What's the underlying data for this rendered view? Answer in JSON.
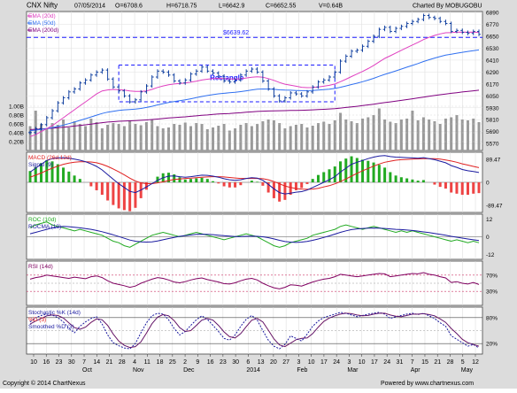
{
  "header": {
    "symbol": "CNX Nifty",
    "date": "07/05/2014",
    "open": "O=6708.6",
    "high": "H=6718.75",
    "low": "L=6642.9",
    "close": "C=6652.55",
    "volume": "V=0.64B",
    "charted_by": "Charted By MOBUGOBU"
  },
  "footer": {
    "copyright": "Copyright © 2014 ChartNexus",
    "powered": "Powered by www.chartnexus.com"
  },
  "colors": {
    "price_up": "#003399",
    "ema20": "#e040c0",
    "ema50": "#3070f0",
    "ema200": "#800080",
    "volume": "#9a9a9a",
    "macd": "#1a1aa0",
    "signal": "#e02020",
    "hist_pos": "#22aa22",
    "hist_neg": "#ee4444",
    "roc": "#22aa22",
    "rocma": "#1a1aa0",
    "rsi": "#800060",
    "stoch_k": "#1a1aa0",
    "stoch_d": "#e02020",
    "rectangle": "#1a1aff"
  },
  "chart_data": [
    {
      "type": "ohlc",
      "title": "CNX Nifty",
      "legend": [
        "EMA (20d)",
        "EMA (50d)",
        "EMA (200d)"
      ],
      "annotations": [
        "Rectangle",
        "$6639.62"
      ],
      "y_ticks": [
        "6890",
        "6770",
        "6650",
        "6530",
        "6410",
        "6290",
        "6170",
        "6050",
        "5930",
        "5810",
        "5690",
        "5570"
      ],
      "ylim": [
        5500,
        6900
      ],
      "volume_ticks": [
        "1.00B",
        "0.80B",
        "0.60B",
        "0.40B",
        "0.20B"
      ],
      "rectangle_bounds": [
        5990,
        6360
      ],
      "resistance": 6639.62,
      "x_ticks": [
        "10",
        "16",
        "23",
        "30",
        "7",
        "14",
        "21",
        "28",
        "4",
        "11",
        "18",
        "25",
        "2",
        "9",
        "16",
        "23",
        "30",
        "6",
        "13",
        "20",
        "27",
        "3",
        "10",
        "17",
        "24",
        "3",
        "10",
        "17",
        "24",
        "31",
        "7",
        "15",
        "21",
        "28",
        "5",
        "12"
      ],
      "month_labels": [
        "Oct",
        "Nov",
        "Dec",
        "2014",
        "Feb",
        "Mar",
        "Apr",
        "May"
      ],
      "close": [
        5680,
        5720,
        5760,
        5830,
        5900,
        5980,
        6030,
        6090,
        6120,
        6180,
        6210,
        6260,
        6290,
        6310,
        6220,
        6140,
        6100,
        6050,
        5990,
        6010,
        6090,
        6150,
        6240,
        6300,
        6290,
        6260,
        6200,
        6180,
        6210,
        6270,
        6300,
        6340,
        6300,
        6280,
        6250,
        6200,
        6190,
        6210,
        6260,
        6300,
        6320,
        6290,
        6200,
        6120,
        6050,
        6000,
        6030,
        6080,
        6070,
        6050,
        6090,
        6140,
        6190,
        6210,
        6240,
        6290,
        6400,
        6450,
        6500,
        6510,
        6550,
        6600,
        6650,
        6720,
        6740,
        6700,
        6730,
        6750,
        6780,
        6800,
        6820,
        6860,
        6840,
        6830,
        6800,
        6780,
        6700,
        6710,
        6690,
        6680,
        6700,
        6670
      ],
      "ema20": [
        5640,
        5660,
        5690,
        5720,
        5750,
        5790,
        5830,
        5870,
        5910,
        5950,
        5990,
        6030,
        6070,
        6100,
        6110,
        6115,
        6112,
        6108,
        6100,
        6095,
        6095,
        6100,
        6115,
        6135,
        6150,
        6162,
        6170,
        6175,
        6180,
        6188,
        6198,
        6210,
        6218,
        6224,
        6226,
        6224,
        6221,
        6220,
        6222,
        6230,
        6238,
        6242,
        6238,
        6224,
        6206,
        6185,
        6168,
        6157,
        6147,
        6137,
        6133,
        6134,
        6140,
        6147,
        6156,
        6170,
        6193,
        6218,
        6245,
        6270,
        6296,
        6325,
        6357,
        6393,
        6427,
        6454,
        6482,
        6509,
        6536,
        6563,
        6589,
        6617,
        6640,
        6659,
        6674,
        6686,
        6688,
        6691,
        6692,
        6691,
        6692,
        6690
      ],
      "ema50": [
        5700,
        5705,
        5712,
        5720,
        5730,
        5742,
        5755,
        5770,
        5786,
        5803,
        5820,
        5838,
        5856,
        5873,
        5886,
        5895,
        5903,
        5909,
        5913,
        5917,
        5924,
        5933,
        5945,
        5959,
        5972,
        5984,
        5993,
        6001,
        6010,
        6021,
        6032,
        6044,
        6054,
        6063,
        6071,
        6076,
        6081,
        6086,
        6093,
        6101,
        6110,
        6117,
        6120,
        6119,
        6116,
        6111,
        6108,
        6107,
        6105,
        6103,
        6103,
        6105,
        6109,
        6113,
        6118,
        6125,
        6137,
        6150,
        6164,
        6178,
        6193,
        6209,
        6227,
        6247,
        6267,
        6284,
        6302,
        6320,
        6339,
        6357,
        6376,
        6396,
        6414,
        6431,
        6446,
        6460,
        6470,
        6480,
        6489,
        6498,
        6506,
        6513
      ],
      "ema200": [
        5710,
        5713,
        5716,
        5720,
        5724,
        5729,
        5734,
        5740,
        5746,
        5752,
        5759,
        5766,
        5773,
        5780,
        5786,
        5790,
        5794,
        5797,
        5799,
        5801,
        5804,
        5808,
        5812,
        5817,
        5822,
        5827,
        5831,
        5835,
        5839,
        5844,
        5849,
        5854,
        5858,
        5863,
        5867,
        5870,
        5873,
        5877,
        5880,
        5885,
        5889,
        5893,
        5896,
        5898,
        5899,
        5900,
        5901,
        5903,
        5904,
        5905,
        5907,
        5909,
        5912,
        5915,
        5918,
        5922,
        5927,
        5933,
        5939,
        5945,
        5952,
        5959,
        5966,
        5974,
        5982,
        5990,
        5997,
        6005,
        6013,
        6021,
        6030,
        6038,
        6046,
        6054,
        6062,
        6069,
        6076,
        6082,
        6089,
        6095,
        6101,
        6107
      ],
      "volume": [
        0.55,
        0.9,
        0.6,
        0.5,
        0.62,
        0.58,
        0.7,
        0.52,
        0.66,
        0.6,
        0.55,
        0.72,
        0.64,
        0.5,
        0.58,
        0.62,
        0.6,
        0.55,
        0.68,
        0.6,
        0.57,
        0.64,
        0.7,
        0.55,
        0.5,
        0.52,
        0.6,
        0.58,
        0.63,
        0.55,
        0.62,
        0.6,
        0.48,
        0.52,
        0.56,
        0.6,
        0.45,
        0.5,
        0.58,
        0.62,
        0.55,
        0.6,
        0.66,
        0.7,
        0.68,
        0.62,
        0.5,
        0.55,
        0.58,
        0.6,
        0.52,
        0.56,
        0.62,
        0.65,
        0.6,
        0.68,
        0.85,
        0.7,
        0.66,
        0.62,
        0.72,
        0.75,
        0.8,
        0.95,
        0.7,
        0.65,
        0.62,
        0.7,
        0.72,
        0.9,
        0.68,
        0.75,
        0.7,
        0.66,
        0.6,
        0.72,
        0.75,
        0.8,
        0.7,
        0.68,
        0.72,
        0.64
      ]
    },
    {
      "type": "line",
      "title": "MACD (26d,12d)",
      "legend": [
        "MACD (26d,12d)",
        "Signal (9)"
      ],
      "y_ticks": [
        "89.47",
        "0",
        "-89.47"
      ],
      "ylim": [
        -110,
        110
      ],
      "macd": [
        40,
        55,
        70,
        85,
        92,
        95,
        96,
        94,
        90,
        86,
        80,
        72,
        62,
        48,
        30,
        12,
        -5,
        -20,
        -35,
        -40,
        -30,
        -18,
        -5,
        8,
        18,
        24,
        25,
        22,
        20,
        22,
        25,
        28,
        27,
        24,
        20,
        14,
        10,
        8,
        10,
        15,
        18,
        16,
        8,
        -8,
        -25,
        -40,
        -45,
        -42,
        -38,
        -36,
        -30,
        -20,
        -10,
        0,
        10,
        22,
        40,
        55,
        70,
        78,
        85,
        92,
        98,
        102,
        104,
        100,
        98,
        97,
        96,
        95,
        94,
        96,
        92,
        88,
        82,
        76,
        65,
        58,
        50,
        45,
        42,
        38
      ],
      "signal": [
        20,
        28,
        36,
        46,
        55,
        63,
        70,
        75,
        78,
        80,
        80,
        79,
        76,
        70,
        62,
        52,
        41,
        29,
        16,
        5,
        -2,
        -5,
        -5,
        -2,
        2,
        7,
        11,
        13,
        15,
        16,
        18,
        20,
        21,
        22,
        22,
        21,
        19,
        17,
        15,
        15,
        15,
        15,
        14,
        10,
        3,
        -6,
        -14,
        -20,
        -24,
        -26,
        -27,
        -26,
        -23,
        -18,
        -13,
        -6,
        3,
        13,
        24,
        35,
        45,
        54,
        63,
        71,
        78,
        82,
        86,
        88,
        89,
        90,
        91,
        92,
        92,
        92,
        90,
        87,
        83,
        78,
        72,
        67,
        62,
        57
      ]
    },
    {
      "type": "line",
      "title": "ROC (10d)",
      "legend": [
        "ROC (10d)",
        "ROCMA (10)"
      ],
      "y_ticks": [
        "12",
        "0",
        "-12"
      ],
      "ylim": [
        -14,
        14
      ],
      "roc": [
        6,
        8,
        9,
        10,
        8,
        7,
        6,
        5,
        4,
        5,
        4,
        3,
        2,
        1,
        -1,
        -3,
        -4,
        -6,
        -7,
        -5,
        -3,
        -1,
        1,
        2,
        3,
        2,
        1,
        0,
        1,
        2,
        3,
        2,
        1,
        0,
        -1,
        -2,
        -1,
        0,
        1,
        2,
        1,
        0,
        -2,
        -4,
        -6,
        -7,
        -6,
        -4,
        -3,
        -2,
        -1,
        1,
        2,
        3,
        4,
        5,
        7,
        8,
        7,
        6,
        5,
        6,
        7,
        6,
        5,
        4,
        3,
        4,
        3,
        4,
        3,
        2,
        1,
        0,
        -1,
        -2,
        -3,
        -2,
        -3,
        -4,
        -3,
        -4
      ],
      "rocma": [
        2,
        3,
        4,
        5,
        6,
        6.5,
        7,
        6.8,
        6.4,
        6,
        5.5,
        5,
        4.2,
        3.4,
        2.4,
        1.3,
        0.2,
        -1,
        -2.2,
        -3,
        -3.4,
        -3.6,
        -3.4,
        -2.8,
        -2,
        -1.2,
        -0.4,
        0.3,
        0.8,
        1.2,
        1.6,
        1.7,
        1.6,
        1.4,
        1.1,
        0.7,
        0.4,
        0.2,
        0.2,
        0.3,
        0.4,
        0.3,
        0,
        -0.6,
        -1.4,
        -2.4,
        -3.2,
        -3.6,
        -3.8,
        -3.6,
        -3.1,
        -2.4,
        -1.5,
        -0.5,
        0.6,
        1.8,
        3,
        4,
        4.8,
        5.3,
        5.6,
        5.8,
        5.9,
        5.8,
        5.6,
        5.3,
        5,
        4.8,
        4.5,
        4.2,
        3.8,
        3.3,
        2.8,
        2.2,
        1.6,
        1,
        0.3,
        -0.3,
        -0.9,
        -1.5,
        -2,
        -2.5
      ]
    },
    {
      "type": "line",
      "title": "RSI (14d)",
      "y_ticks": [
        "70%",
        "30%"
      ],
      "ylim": [
        0,
        100
      ],
      "rsi": [
        60,
        64,
        66,
        70,
        68,
        66,
        64,
        62,
        65,
        63,
        61,
        66,
        68,
        64,
        56,
        50,
        47,
        44,
        40,
        43,
        50,
        55,
        60,
        64,
        62,
        58,
        53,
        51,
        54,
        58,
        61,
        63,
        59,
        56,
        53,
        49,
        48,
        51,
        56,
        60,
        62,
        58,
        50,
        44,
        39,
        36,
        40,
        46,
        45,
        43,
        48,
        53,
        57,
        60,
        62,
        66,
        72,
        70,
        68,
        66,
        68,
        70,
        72,
        74,
        73,
        66,
        68,
        70,
        72,
        74,
        73,
        76,
        72,
        70,
        66,
        63,
        52,
        54,
        50,
        48,
        52,
        47
      ]
    },
    {
      "type": "line",
      "title": "Stochastic %K (14d)",
      "legend": [
        "Stochastic %K (14d)",
        "%D (3)",
        "Smoothed %D (3)"
      ],
      "y_ticks": [
        "80%",
        "20%"
      ],
      "ylim": [
        0,
        100
      ],
      "stoch_k": [
        70,
        80,
        85,
        88,
        86,
        80,
        70,
        55,
        45,
        60,
        70,
        78,
        82,
        65,
        40,
        22,
        15,
        10,
        8,
        20,
        45,
        68,
        84,
        90,
        88,
        75,
        55,
        40,
        48,
        62,
        75,
        84,
        76,
        62,
        48,
        32,
        28,
        40,
        60,
        76,
        85,
        74,
        50,
        28,
        14,
        8,
        18,
        38,
        32,
        26,
        42,
        60,
        72,
        80,
        84,
        88,
        92,
        90,
        86,
        82,
        85,
        88,
        90,
        92,
        88,
        78,
        82,
        85,
        88,
        90,
        87,
        90,
        84,
        78,
        68,
        60,
        38,
        30,
        22,
        14,
        18,
        10
      ],
      "stoch_d": [
        65,
        72,
        78,
        84,
        86,
        85,
        79,
        68,
        57,
        53,
        58,
        69,
        77,
        75,
        62,
        42,
        26,
        16,
        11,
        13,
        24,
        44,
        66,
        81,
        87,
        84,
        73,
        57,
        48,
        50,
        62,
        74,
        78,
        74,
        62,
        47,
        36,
        33,
        43,
        59,
        74,
        78,
        70,
        51,
        31,
        17,
        13,
        21,
        29,
        32,
        33,
        43,
        58,
        71,
        79,
        84,
        88,
        90,
        89,
        86,
        84,
        85,
        88,
        90,
        90,
        86,
        83,
        82,
        85,
        88,
        88,
        89,
        87,
        84,
        77,
        69,
        55,
        43,
        30,
        22,
        18,
        14
      ]
    }
  ]
}
